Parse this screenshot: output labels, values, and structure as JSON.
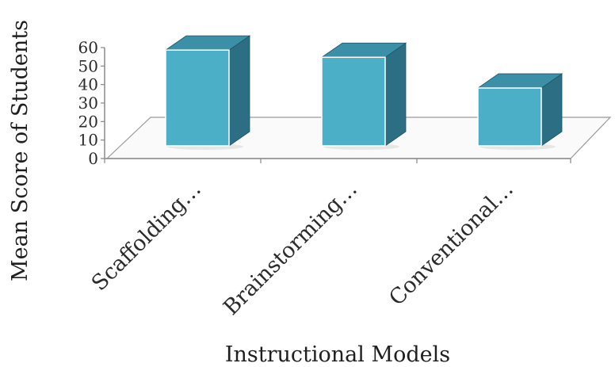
{
  "chart_data": {
    "type": "bar",
    "style": "3d-column",
    "categories": [
      "Scaffolding…",
      "Brainstorming…",
      "Conventional…"
    ],
    "values": [
      53,
      49,
      32
    ],
    "ylabel": "Mean Score of Students",
    "xlabel": "Instructional Models",
    "ylim": [
      0,
      60
    ],
    "yticks": [
      0,
      10,
      20,
      30,
      40,
      50,
      60
    ],
    "grid": false,
    "legend": "none",
    "colors": {
      "front": "#4BAFC8",
      "side": "#2C6E83",
      "top": "#3B8FA7",
      "floor": "#FAFAFA",
      "axis": "#888888"
    }
  }
}
